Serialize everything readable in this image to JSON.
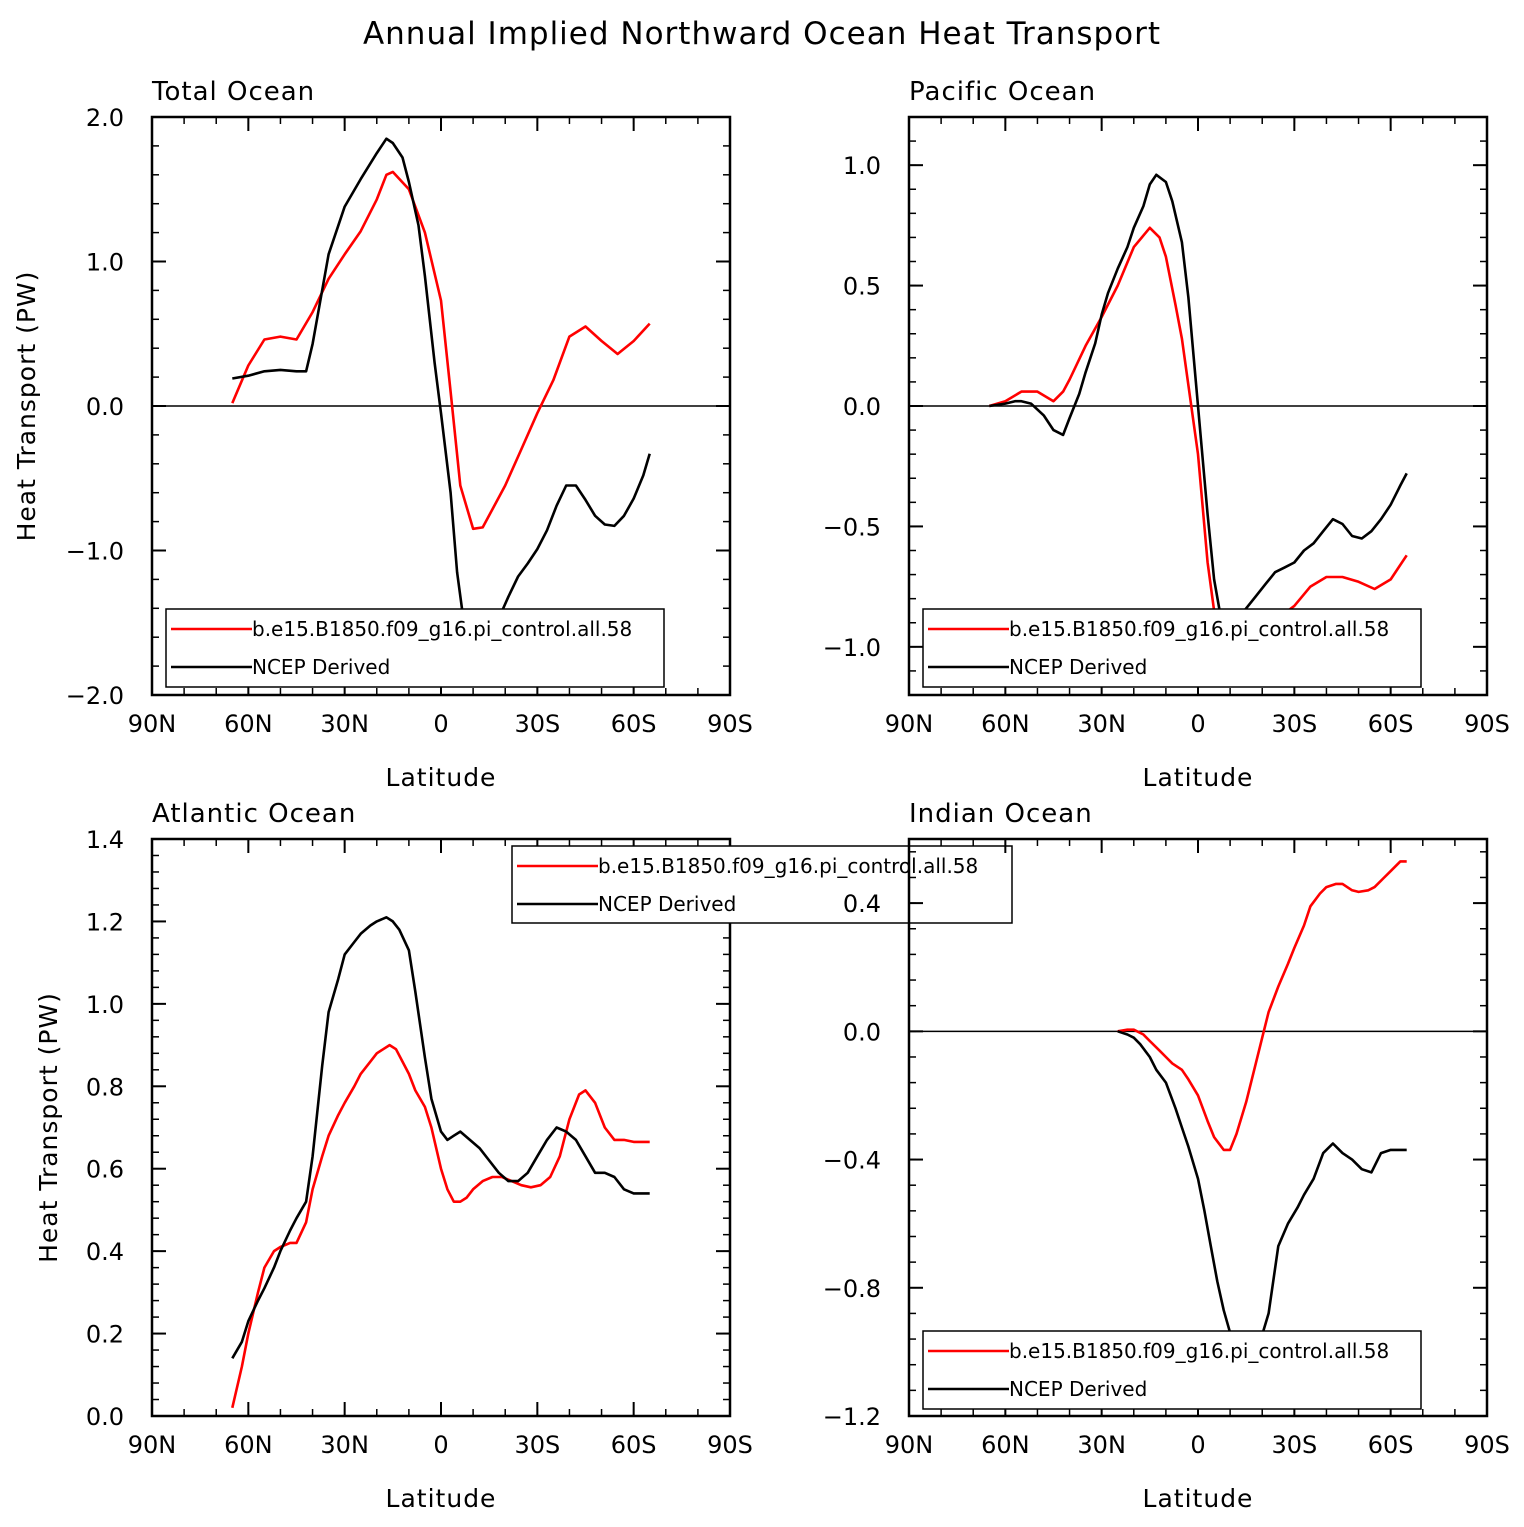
{
  "title": "Annual Implied Northward Ocean Heat Transport",
  "colors": {
    "model": "#ff0000",
    "obs": "#000000",
    "zero_line": "#000000"
  },
  "chart_data": [
    {
      "type": "line",
      "title": "Total Ocean",
      "xlabel": "Latitude",
      "ylabel": "Heat Transport (PW)",
      "xlim": [
        90,
        -90
      ],
      "ylim": [
        -2.0,
        2.0
      ],
      "x_ticks": [
        90,
        60,
        30,
        0,
        -30,
        -60,
        -90
      ],
      "x_tick_labels": [
        "90N",
        "60N",
        "30N",
        "0",
        "30S",
        "60S",
        "90S"
      ],
      "y_ticks": [
        -2.0,
        -1.0,
        0.0,
        1.0,
        2.0
      ],
      "y_tick_labels": [
        "−2.0",
        "−1.0",
        "0.0",
        "1.0",
        "2.0"
      ],
      "zero_line": true,
      "legend": {
        "position": "bottom-inside"
      },
      "series": [
        {
          "name": "b.e15.B1850.f09_g16.pi_control.all.58",
          "color": "#ff0000",
          "x": [
            65,
            60,
            55,
            50,
            45,
            40,
            35,
            30,
            25,
            20,
            17,
            15,
            10,
            5,
            0,
            -3,
            -6,
            -10,
            -13,
            -20,
            -25,
            -30,
            -35,
            -40,
            -45,
            -50,
            -55,
            -60,
            -65
          ],
          "y": [
            0.02,
            0.28,
            0.46,
            0.48,
            0.46,
            0.65,
            0.88,
            1.05,
            1.21,
            1.43,
            1.6,
            1.62,
            1.5,
            1.2,
            0.73,
            0.1,
            -0.55,
            -0.85,
            -0.84,
            -0.55,
            -0.3,
            -0.05,
            0.18,
            0.48,
            0.55,
            0.45,
            0.36,
            0.45,
            0.57
          ]
        },
        {
          "name": "NCEP Derived",
          "color": "#000000",
          "x": [
            65,
            60,
            55,
            50,
            45,
            42,
            40,
            35,
            30,
            25,
            20,
            17,
            15,
            12,
            10,
            7,
            5,
            2,
            0,
            -3,
            -5,
            -7,
            -10,
            -12,
            -15,
            -18,
            -21,
            -24,
            -27,
            -30,
            -33,
            -36,
            -39,
            -42,
            -45,
            -48,
            -51,
            -54,
            -57,
            -60,
            -63,
            -65
          ],
          "y": [
            0.19,
            0.21,
            0.24,
            0.25,
            0.24,
            0.24,
            0.43,
            1.05,
            1.38,
            1.57,
            1.75,
            1.85,
            1.82,
            1.72,
            1.55,
            1.25,
            0.9,
            0.3,
            -0.05,
            -0.6,
            -1.15,
            -1.48,
            -1.64,
            -1.67,
            -1.61,
            -1.47,
            -1.32,
            -1.18,
            -1.09,
            -0.99,
            -0.86,
            -0.69,
            -0.55,
            -0.55,
            -0.65,
            -0.76,
            -0.82,
            -0.83,
            -0.76,
            -0.64,
            -0.48,
            -0.33
          ]
        }
      ]
    },
    {
      "type": "line",
      "title": "Pacific Ocean",
      "xlabel": "Latitude",
      "ylabel": "",
      "xlim": [
        90,
        -90
      ],
      "ylim": [
        -1.2,
        1.2
      ],
      "x_ticks": [
        90,
        60,
        30,
        0,
        -30,
        -60,
        -90
      ],
      "x_tick_labels": [
        "90N",
        "60N",
        "30N",
        "0",
        "30S",
        "60S",
        "90S"
      ],
      "y_ticks": [
        -1.0,
        -0.5,
        0.0,
        0.5,
        1.0
      ],
      "y_tick_labels": [
        "−1.0",
        "−0.5",
        "0.0",
        "0.5",
        "1.0"
      ],
      "zero_line": true,
      "legend": {
        "position": "bottom-inside"
      },
      "series": [
        {
          "name": "b.e15.B1850.f09_g16.pi_control.all.58",
          "color": "#ff0000",
          "x": [
            65,
            60,
            55,
            50,
            45,
            42,
            40,
            35,
            30,
            25,
            20,
            15,
            12,
            10,
            7,
            5,
            0,
            -3,
            -5,
            -8,
            -10,
            -13,
            -17,
            -20,
            -25,
            -30,
            -35,
            -40,
            -45,
            -50,
            -55,
            -60,
            -65
          ],
          "y": [
            0.0,
            0.02,
            0.06,
            0.06,
            0.02,
            0.06,
            0.11,
            0.25,
            0.37,
            0.5,
            0.66,
            0.74,
            0.7,
            0.62,
            0.42,
            0.28,
            -0.2,
            -0.65,
            -0.85,
            -0.98,
            -1.02,
            -1.01,
            -0.98,
            -0.95,
            -0.88,
            -0.83,
            -0.75,
            -0.71,
            -0.71,
            -0.73,
            -0.76,
            -0.72,
            -0.62
          ]
        },
        {
          "name": "NCEP Derived",
          "color": "#000000",
          "x": [
            65,
            60,
            57,
            55,
            52,
            48,
            45,
            42,
            40,
            37,
            35,
            32,
            30,
            28,
            25,
            22,
            20,
            17,
            15,
            13,
            10,
            8,
            5,
            3,
            0,
            -3,
            -5,
            -7,
            -10,
            -12,
            -15,
            -18,
            -21,
            -24,
            -27,
            -30,
            -33,
            -36,
            -39,
            -42,
            -45,
            -48,
            -51,
            -54,
            -57,
            -60,
            -63,
            -65
          ],
          "y": [
            0.0,
            0.01,
            0.02,
            0.02,
            0.01,
            -0.04,
            -0.1,
            -0.12,
            -0.05,
            0.05,
            0.14,
            0.26,
            0.38,
            0.47,
            0.57,
            0.66,
            0.74,
            0.83,
            0.92,
            0.96,
            0.93,
            0.85,
            0.68,
            0.45,
            0.0,
            -0.45,
            -0.72,
            -0.87,
            -0.92,
            -0.89,
            -0.84,
            -0.79,
            -0.74,
            -0.69,
            -0.67,
            -0.65,
            -0.6,
            -0.57,
            -0.52,
            -0.47,
            -0.49,
            -0.54,
            -0.55,
            -0.52,
            -0.47,
            -0.41,
            -0.33,
            -0.28
          ]
        }
      ]
    },
    {
      "type": "line",
      "title": "Atlantic Ocean",
      "xlabel": "Latitude",
      "ylabel": "Heat Transport (PW)",
      "xlim": [
        90,
        -90
      ],
      "ylim": [
        0.0,
        1.4
      ],
      "x_ticks": [
        90,
        60,
        30,
        0,
        -30,
        -60,
        -90
      ],
      "x_tick_labels": [
        "90N",
        "60N",
        "30N",
        "0",
        "30S",
        "60S",
        "90S"
      ],
      "y_ticks": [
        0.0,
        0.2,
        0.4,
        0.6,
        0.8,
        1.0,
        1.2,
        1.4
      ],
      "y_tick_labels": [
        "0.0",
        "0.2",
        "0.4",
        "0.6",
        "0.8",
        "1.0",
        "1.2",
        "1.4"
      ],
      "zero_line": false,
      "legend": {
        "position": "top-right-outside"
      },
      "series": [
        {
          "name": "b.e15.B1850.f09_g16.pi_control.all.58",
          "color": "#ff0000",
          "x": [
            65,
            62,
            60,
            57,
            55,
            52,
            50,
            47,
            45,
            42,
            40,
            37,
            35,
            32,
            30,
            27,
            25,
            22,
            20,
            18,
            16,
            14,
            12,
            10,
            8,
            5,
            3,
            0,
            -2,
            -4,
            -6,
            -8,
            -10,
            -13,
            -16,
            -19,
            -22,
            -25,
            -28,
            -31,
            -34,
            -37,
            -40,
            -43,
            -45,
            -48,
            -51,
            -54,
            -57,
            -60,
            -63,
            -65
          ],
          "y": [
            0.02,
            0.12,
            0.2,
            0.3,
            0.36,
            0.4,
            0.41,
            0.42,
            0.42,
            0.47,
            0.55,
            0.63,
            0.68,
            0.73,
            0.76,
            0.8,
            0.83,
            0.86,
            0.88,
            0.89,
            0.9,
            0.89,
            0.86,
            0.83,
            0.79,
            0.75,
            0.7,
            0.6,
            0.55,
            0.52,
            0.52,
            0.53,
            0.55,
            0.57,
            0.58,
            0.58,
            0.57,
            0.56,
            0.555,
            0.56,
            0.58,
            0.63,
            0.72,
            0.78,
            0.79,
            0.76,
            0.7,
            0.67,
            0.67,
            0.665,
            0.665,
            0.665
          ]
        },
        {
          "name": "NCEP Derived",
          "color": "#000000",
          "x": [
            65,
            62,
            60,
            57,
            55,
            52,
            50,
            47,
            45,
            42,
            40,
            37,
            35,
            32,
            30,
            27,
            25,
            22,
            20,
            17,
            15,
            13,
            10,
            8,
            5,
            3,
            0,
            -2,
            -4,
            -6,
            -9,
            -12,
            -15,
            -18,
            -21,
            -24,
            -27,
            -30,
            -33,
            -36,
            -39,
            -42,
            -45,
            -48,
            -51,
            -54,
            -57,
            -60,
            -63,
            -65
          ],
          "y": [
            0.14,
            0.18,
            0.23,
            0.28,
            0.31,
            0.36,
            0.4,
            0.45,
            0.48,
            0.52,
            0.63,
            0.85,
            0.98,
            1.06,
            1.12,
            1.15,
            1.17,
            1.19,
            1.2,
            1.21,
            1.2,
            1.18,
            1.13,
            1.03,
            0.87,
            0.77,
            0.69,
            0.67,
            0.68,
            0.69,
            0.67,
            0.65,
            0.62,
            0.59,
            0.57,
            0.57,
            0.59,
            0.63,
            0.67,
            0.7,
            0.69,
            0.67,
            0.63,
            0.59,
            0.59,
            0.58,
            0.55,
            0.54,
            0.54,
            0.54
          ]
        }
      ]
    },
    {
      "type": "line",
      "title": "Indian Ocean",
      "xlabel": "Latitude",
      "ylabel": "",
      "xlim": [
        90,
        -90
      ],
      "ylim": [
        -1.2,
        0.6
      ],
      "x_ticks": [
        90,
        60,
        30,
        0,
        -30,
        -60,
        -90
      ],
      "x_tick_labels": [
        "90N",
        "60N",
        "30N",
        "0",
        "30S",
        "60S",
        "90S"
      ],
      "y_ticks": [
        -1.2,
        -0.8,
        -0.4,
        0.0,
        0.4
      ],
      "y_tick_labels": [
        "−1.2",
        "−0.8",
        "−0.4",
        "0.0",
        "0.4"
      ],
      "zero_line": true,
      "legend": {
        "position": "bottom-inside"
      },
      "series": [
        {
          "name": "b.e15.B1850.f09_g16.pi_control.all.58",
          "color": "#ff0000",
          "x": [
            25,
            22,
            20,
            17,
            15,
            12,
            10,
            8,
            5,
            3,
            0,
            -3,
            -5,
            -8,
            -10,
            -12,
            -15,
            -18,
            -20,
            -22,
            -25,
            -28,
            -30,
            -33,
            -35,
            -38,
            -40,
            -43,
            -45,
            -48,
            -50,
            -53,
            -55,
            -58,
            -60,
            -63,
            -65
          ],
          "y": [
            0.0,
            0.005,
            0.005,
            -0.01,
            -0.03,
            -0.06,
            -0.08,
            -0.1,
            -0.12,
            -0.15,
            -0.2,
            -0.28,
            -0.33,
            -0.37,
            -0.37,
            -0.32,
            -0.22,
            -0.1,
            -0.02,
            0.06,
            0.14,
            0.21,
            0.26,
            0.33,
            0.39,
            0.43,
            0.45,
            0.46,
            0.46,
            0.44,
            0.435,
            0.44,
            0.45,
            0.48,
            0.5,
            0.53,
            0.53
          ]
        },
        {
          "name": "NCEP Derived",
          "color": "#000000",
          "x": [
            25,
            22,
            20,
            18,
            15,
            13,
            10,
            7,
            5,
            3,
            0,
            -2,
            -4,
            -6,
            -8,
            -10,
            -12,
            -14,
            -16,
            -19,
            -22,
            -25,
            -28,
            -31,
            -33,
            -36,
            -39,
            -42,
            -45,
            -48,
            -51,
            -54,
            -57,
            -60,
            -63,
            -65
          ],
          "y": [
            0.0,
            -0.01,
            -0.02,
            -0.04,
            -0.08,
            -0.12,
            -0.16,
            -0.24,
            -0.3,
            -0.36,
            -0.46,
            -0.56,
            -0.67,
            -0.78,
            -0.87,
            -0.94,
            -1.02,
            -1.05,
            -1.02,
            -0.98,
            -0.88,
            -0.67,
            -0.6,
            -0.55,
            -0.51,
            -0.46,
            -0.38,
            -0.35,
            -0.38,
            -0.4,
            -0.43,
            -0.44,
            -0.38,
            -0.37,
            -0.37,
            -0.37
          ]
        }
      ]
    }
  ]
}
